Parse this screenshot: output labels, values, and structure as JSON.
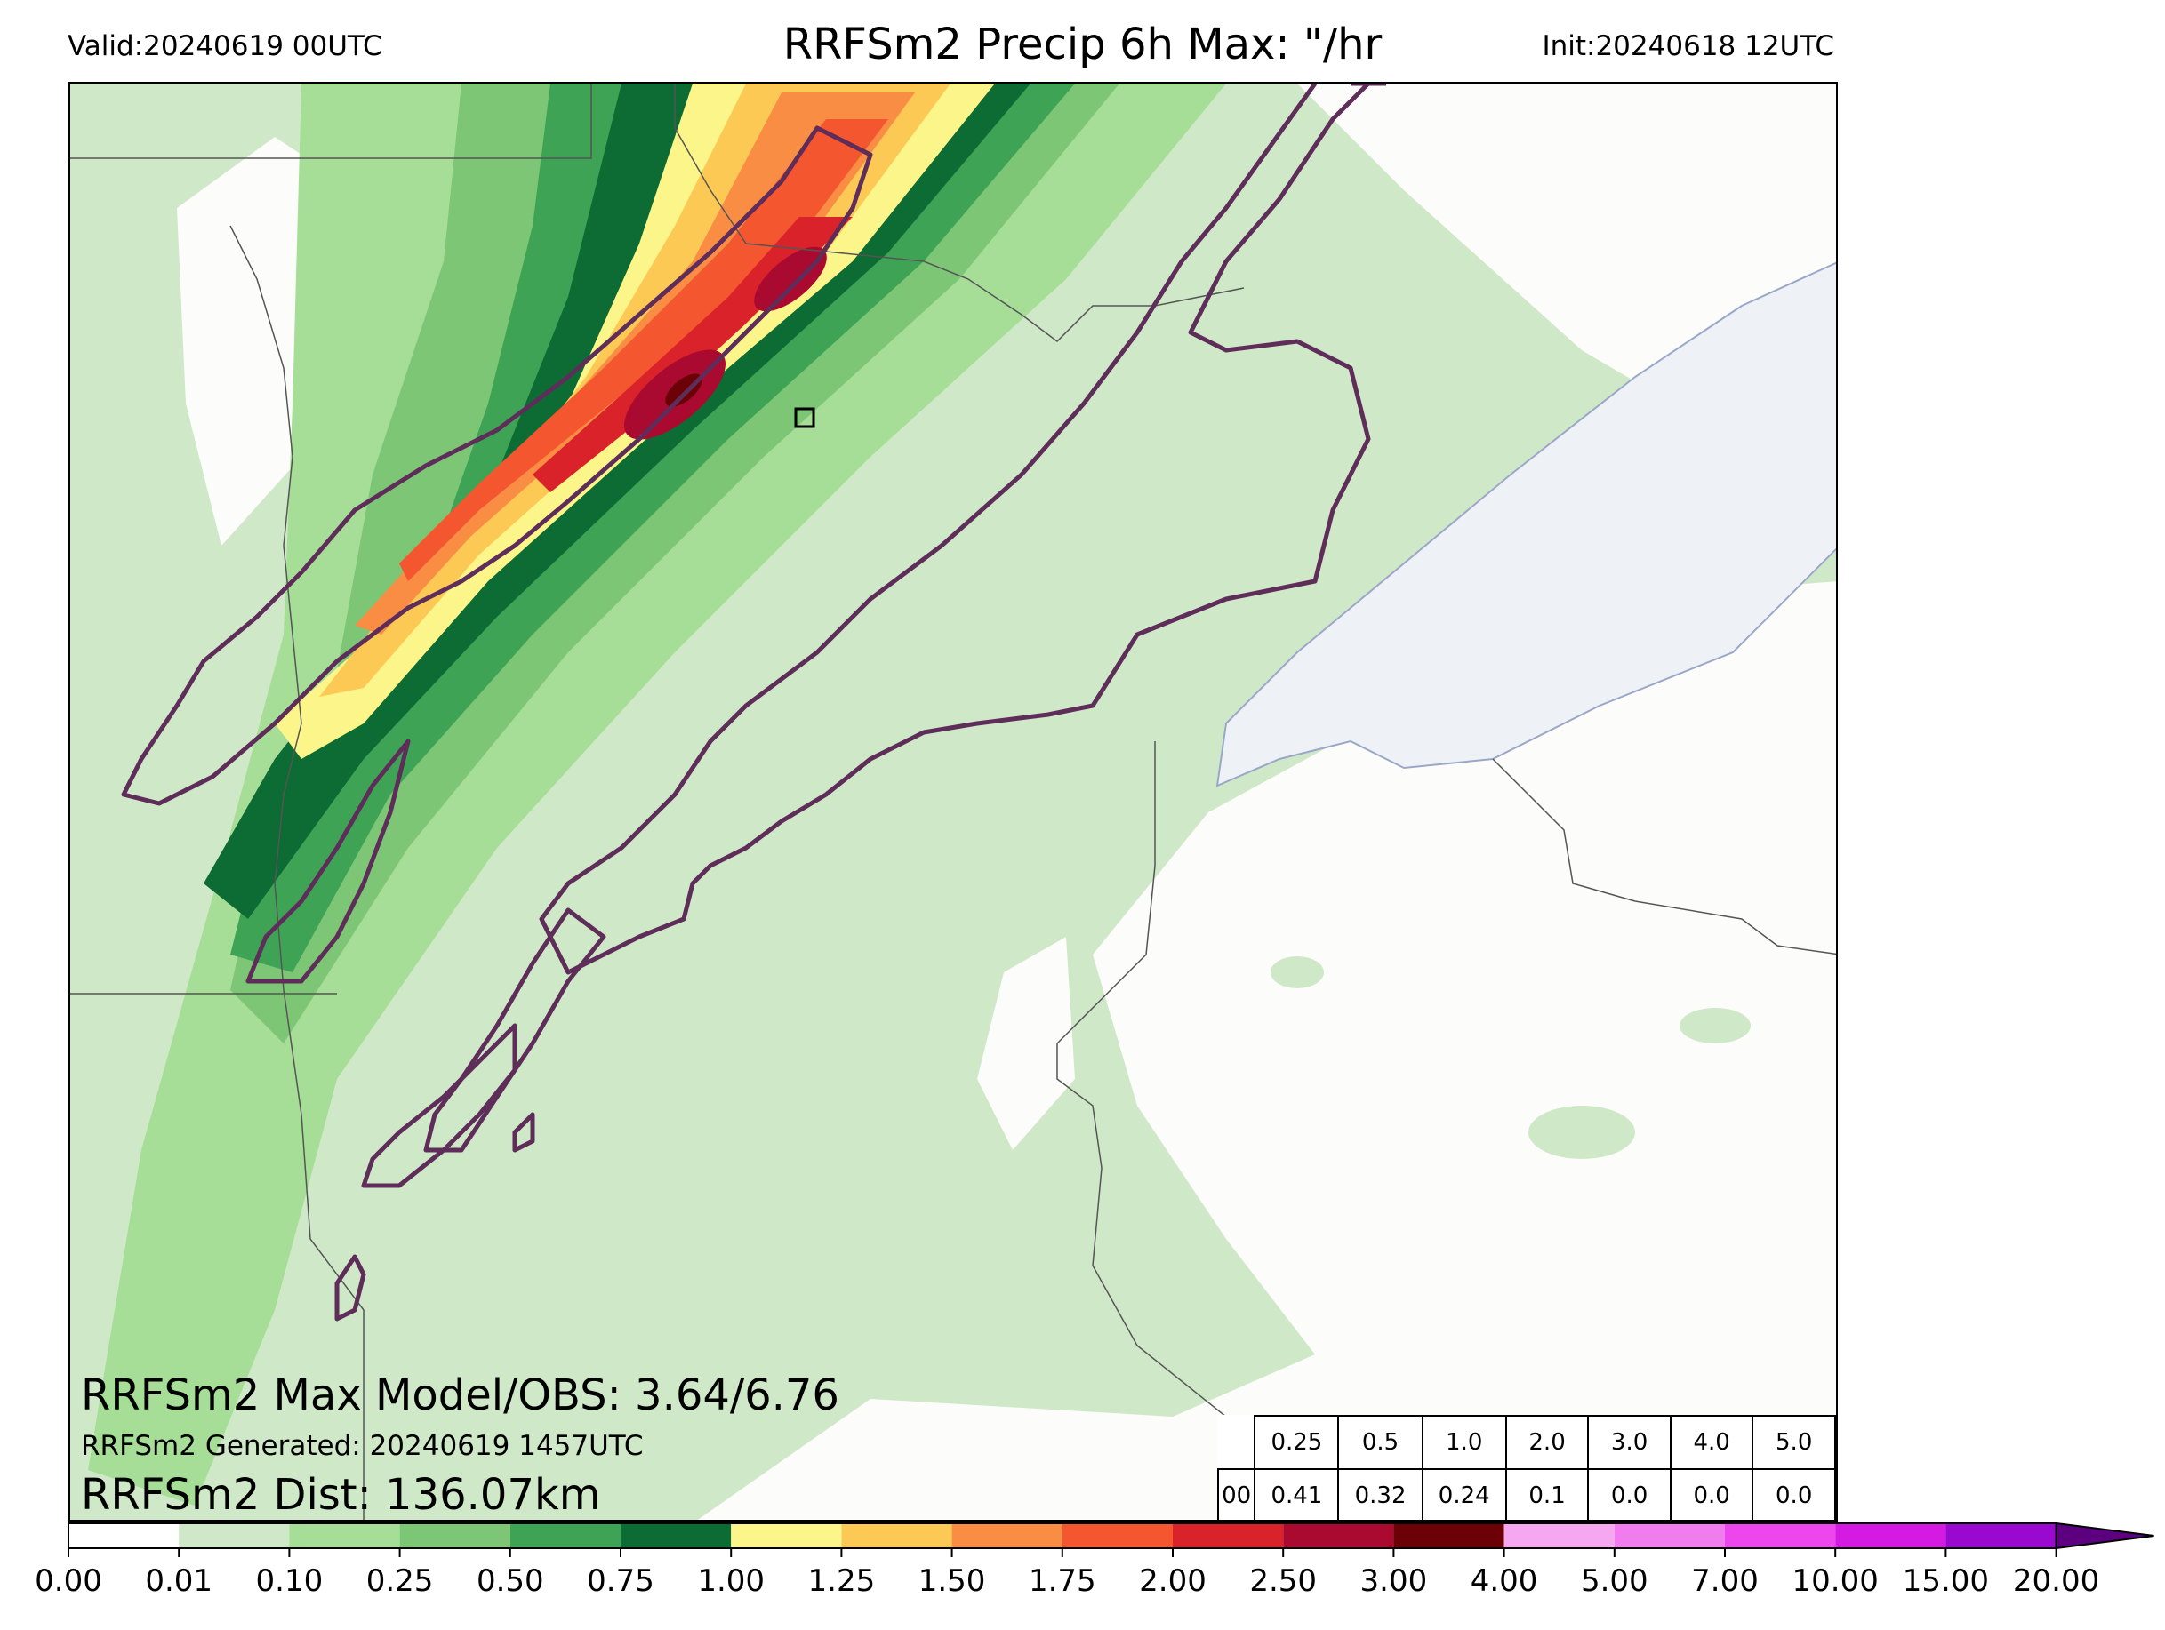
{
  "header": {
    "valid": "Valid:20240619 00UTC",
    "title": "RRFSm2 Precip 6h Max: \"/hr",
    "init": "Init:20240618 12UTC"
  },
  "stats": {
    "max_line": "RRFSm2 Max Model/OBS: 3.64/6.76",
    "generated_line": "RRFSm2 Generated: 20240619 1457UTC",
    "dist_line": "RRFSm2 Dist: 136.07km"
  },
  "threshold_table": {
    "row_label": "00",
    "thresholds": [
      "0.25",
      "0.5",
      "1.0",
      "2.0",
      "3.0",
      "4.0",
      "5.0"
    ],
    "values": [
      "0.41",
      "0.32",
      "0.24",
      "0.1",
      "0.0",
      "0.0",
      "0.0"
    ]
  },
  "colorbar": {
    "levels": [
      "0.00",
      "0.01",
      "0.10",
      "0.25",
      "0.50",
      "0.75",
      "1.00",
      "1.25",
      "1.50",
      "1.75",
      "2.00",
      "2.50",
      "3.00",
      "4.00",
      "5.00",
      "7.00",
      "10.00",
      "15.00",
      "20.00"
    ],
    "colors": [
      "#ffffff",
      "#cfe8c7",
      "#a6dd97",
      "#7dc675",
      "#3fa356",
      "#0d6b34",
      "#fcf58a",
      "#fcc955",
      "#f98d43",
      "#f4562f",
      "#d9222a",
      "#aa0a2f",
      "#6b0006",
      "#f5a8f0",
      "#f07ced",
      "#ec46ec",
      "#d51be1",
      "#9a09d0"
    ],
    "extend_color": "#5c0080"
  },
  "map_colors": {
    "background": "#fcfcfa",
    "state_lines": "#555555",
    "obs_contour": "#5e2d5a",
    "lake_fill": "#eef2f6",
    "lake_line": "#9aa7c8"
  }
}
